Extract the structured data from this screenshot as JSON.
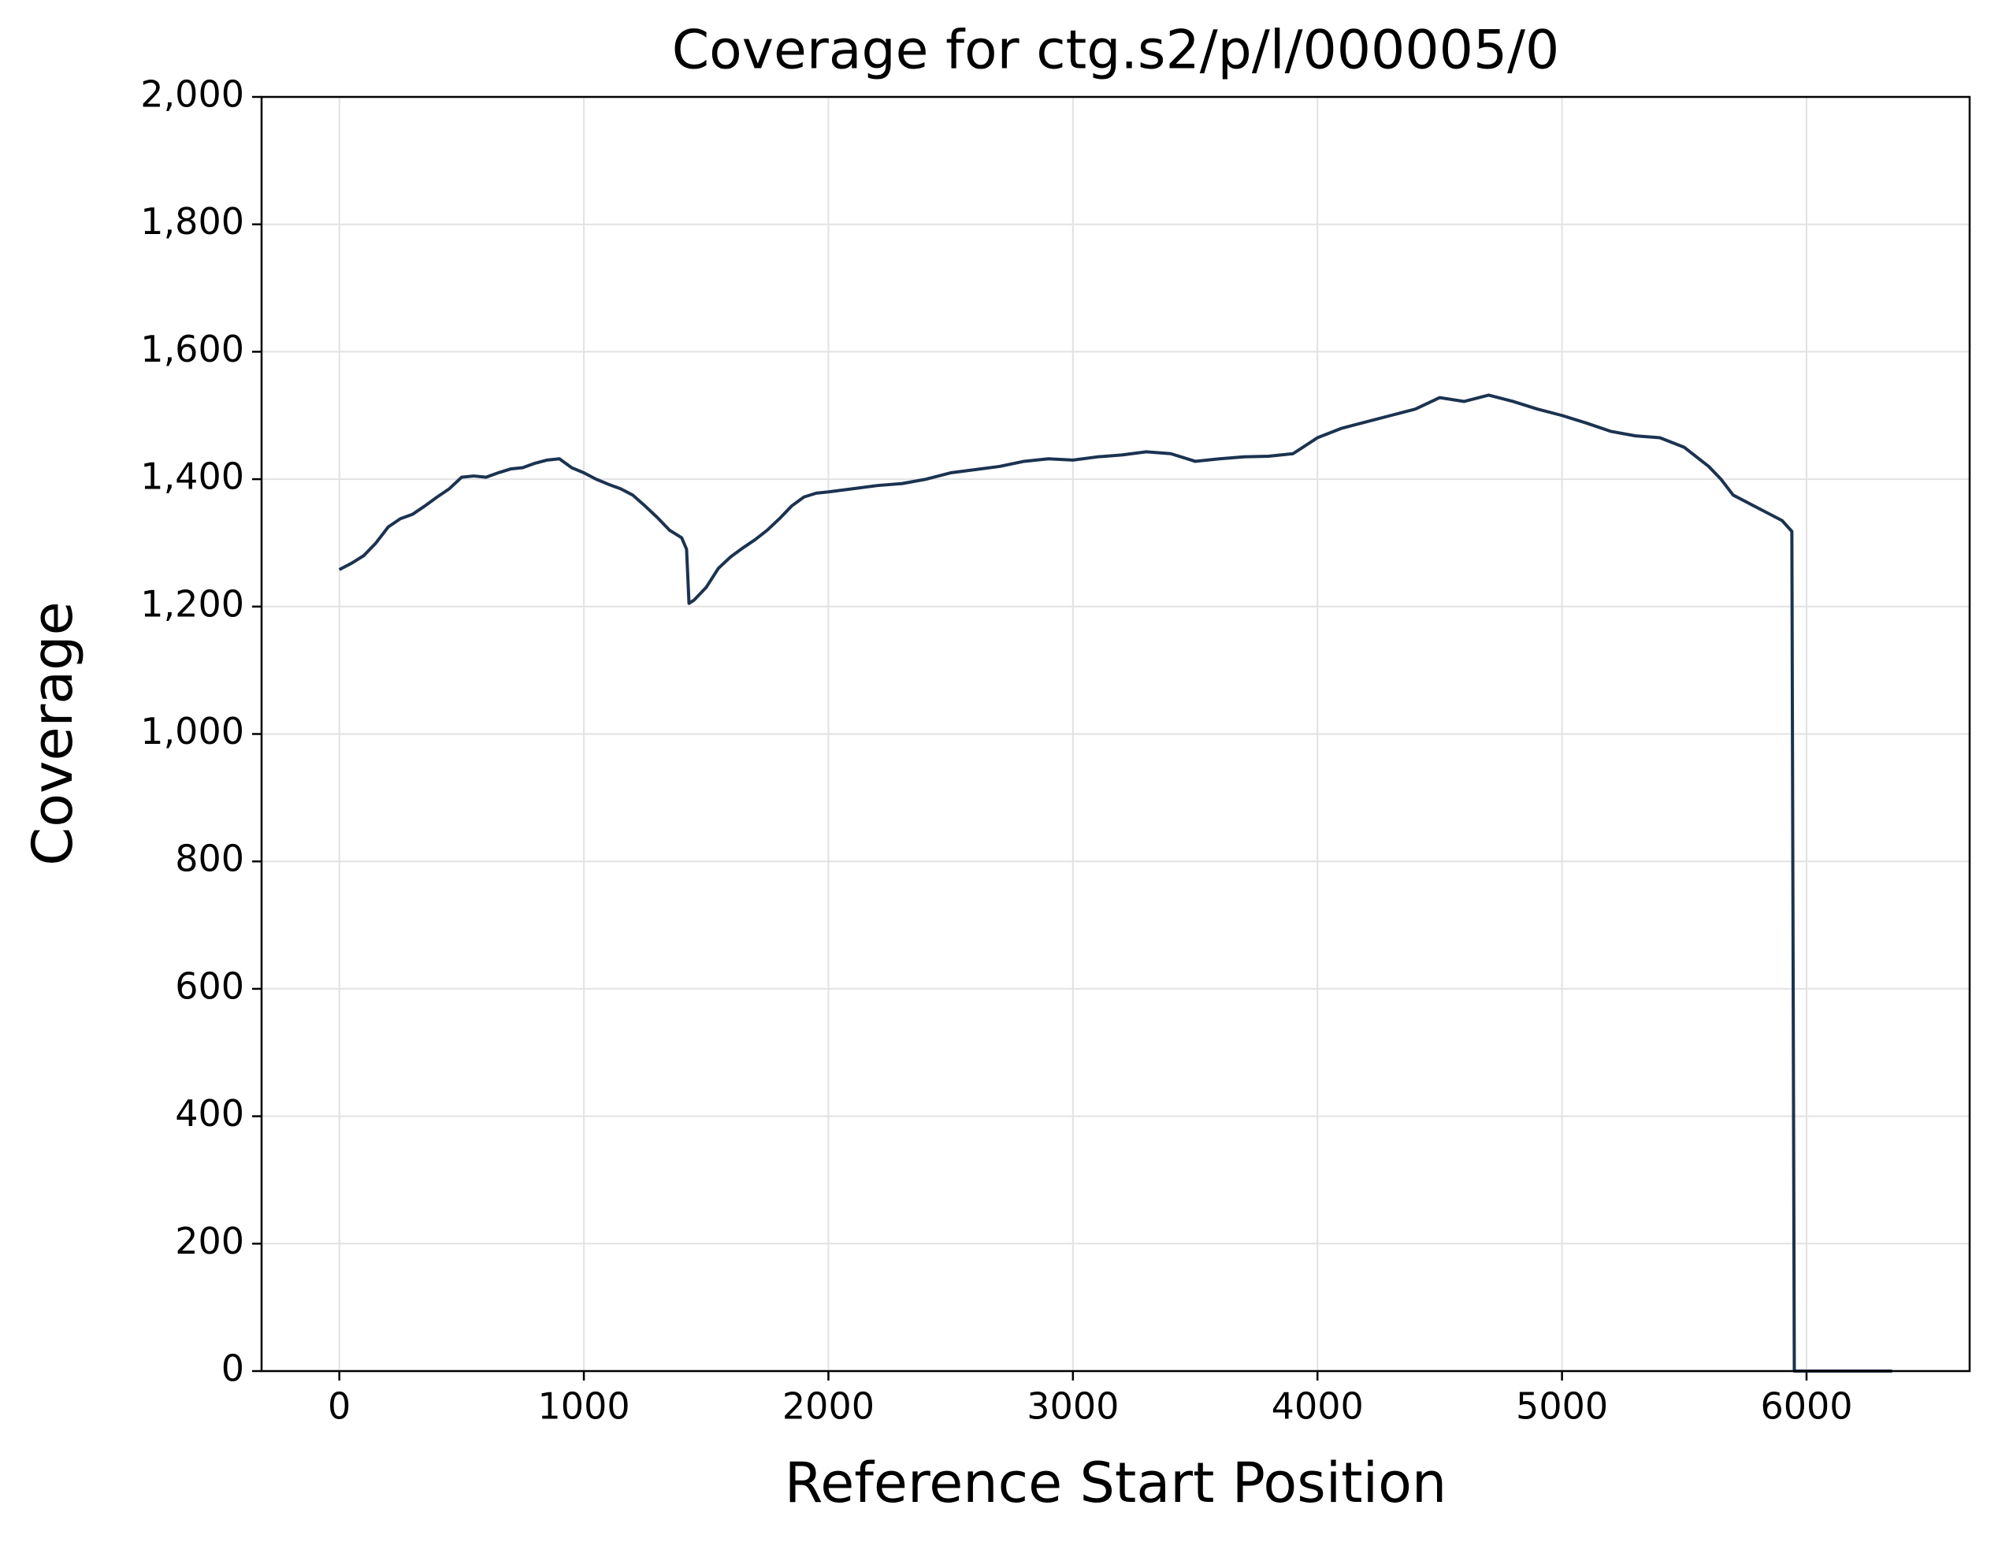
{
  "chart_data": {
    "type": "line",
    "title": "Coverage for ctg.s2/p/l/000005/0",
    "x_label": "Reference Start Position",
    "y_label": "Coverage",
    "x": [
      0,
      50,
      100,
      150,
      200,
      250,
      300,
      350,
      400,
      450,
      500,
      550,
      600,
      650,
      700,
      750,
      800,
      850,
      900,
      950,
      1000,
      1050,
      1100,
      1150,
      1200,
      1250,
      1300,
      1350,
      1400,
      1420,
      1430,
      1450,
      1500,
      1550,
      1600,
      1650,
      1700,
      1750,
      1800,
      1850,
      1900,
      1950,
      2000,
      2100,
      2200,
      2300,
      2400,
      2500,
      2600,
      2700,
      2800,
      2900,
      3000,
      3100,
      3200,
      3300,
      3400,
      3500,
      3600,
      3700,
      3800,
      3900,
      4000,
      4100,
      4200,
      4300,
      4400,
      4500,
      4600,
      4700,
      4800,
      4900,
      5000,
      5100,
      5200,
      5300,
      5400,
      5500,
      5600,
      5650,
      5700,
      5800,
      5900,
      5940,
      5950,
      6350
    ],
    "series": [
      {
        "name": "Coverage",
        "color": "#1b3350",
        "values": [
          1258,
          1268,
          1280,
          1300,
          1325,
          1338,
          1345,
          1358,
          1372,
          1385,
          1403,
          1405,
          1403,
          1410,
          1416,
          1418,
          1425,
          1430,
          1432,
          1418,
          1410,
          1400,
          1392,
          1385,
          1375,
          1358,
          1340,
          1320,
          1308,
          1290,
          1205,
          1210,
          1230,
          1260,
          1278,
          1292,
          1305,
          1320,
          1338,
          1358,
          1372,
          1378,
          1380,
          1385,
          1390,
          1393,
          1400,
          1410,
          1415,
          1420,
          1428,
          1432,
          1430,
          1435,
          1438,
          1443,
          1440,
          1428,
          1432,
          1435,
          1436,
          1440,
          1465,
          1480,
          1490,
          1500,
          1510,
          1528,
          1522,
          1532,
          1522,
          1510,
          1500,
          1488,
          1475,
          1468,
          1465,
          1450,
          1420,
          1400,
          1375,
          1355,
          1335,
          1318,
          0,
          0
        ]
      }
    ],
    "xlim": [
      -318,
      6667
    ],
    "ylim": [
      0,
      2000
    ],
    "xticks": [
      0,
      1000,
      2000,
      3000,
      4000,
      5000,
      6000
    ],
    "yticks": [
      0,
      200,
      400,
      600,
      800,
      {
        "value": 1000,
        "label": "1,000"
      },
      {
        "value": 1200,
        "label": "1,200"
      },
      {
        "value": 1400,
        "label": "1,400"
      },
      {
        "value": 1600,
        "label": "1,600"
      },
      {
        "value": 1800,
        "label": "1,800"
      },
      {
        "value": 2000,
        "label": "2,000"
      }
    ],
    "grid": true
  }
}
